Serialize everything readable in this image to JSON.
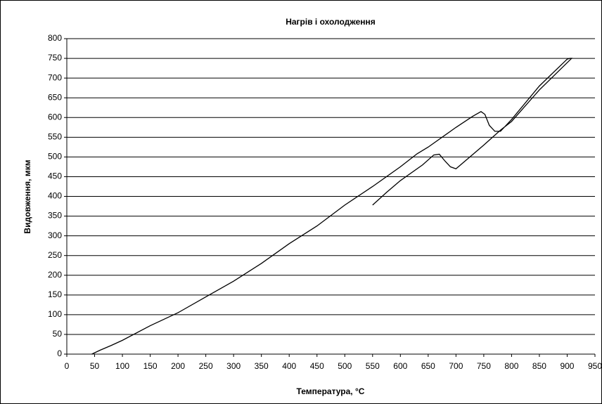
{
  "chart_data": {
    "type": "line",
    "title": "Нагрів і охолодження",
    "xlabel": "Температура, °C",
    "ylabel": "Видовження, мкм",
    "x": [
      45,
      60,
      80,
      100,
      150,
      200,
      250,
      300,
      350,
      400,
      450,
      500,
      550,
      600,
      630,
      650,
      700,
      730,
      745,
      752,
      760,
      770,
      780,
      800,
      850,
      900,
      905,
      908,
      850,
      800,
      780,
      750,
      700,
      690,
      680,
      670,
      660,
      640,
      600,
      575,
      550
    ],
    "series": [
      {
        "color": "#000000",
        "values": [
          0,
          10,
          22,
          35,
          72,
          105,
          145,
          185,
          230,
          280,
          325,
          378,
          425,
          475,
          508,
          525,
          575,
          603,
          615,
          608,
          580,
          565,
          565,
          595,
          680,
          748,
          750,
          750,
          670,
          590,
          568,
          530,
          470,
          475,
          490,
          507,
          505,
          480,
          440,
          410,
          378
        ]
      }
    ],
    "xlim": [
      0,
      950
    ],
    "xticks": [
      0,
      50,
      100,
      150,
      200,
      250,
      300,
      350,
      400,
      450,
      500,
      550,
      600,
      650,
      700,
      750,
      800,
      850,
      900,
      950
    ],
    "ylim": [
      0,
      800
    ],
    "yticks": [
      0,
      50,
      100,
      150,
      200,
      250,
      300,
      350,
      400,
      450,
      500,
      550,
      600,
      650,
      700,
      750,
      800
    ],
    "grid": true
  }
}
